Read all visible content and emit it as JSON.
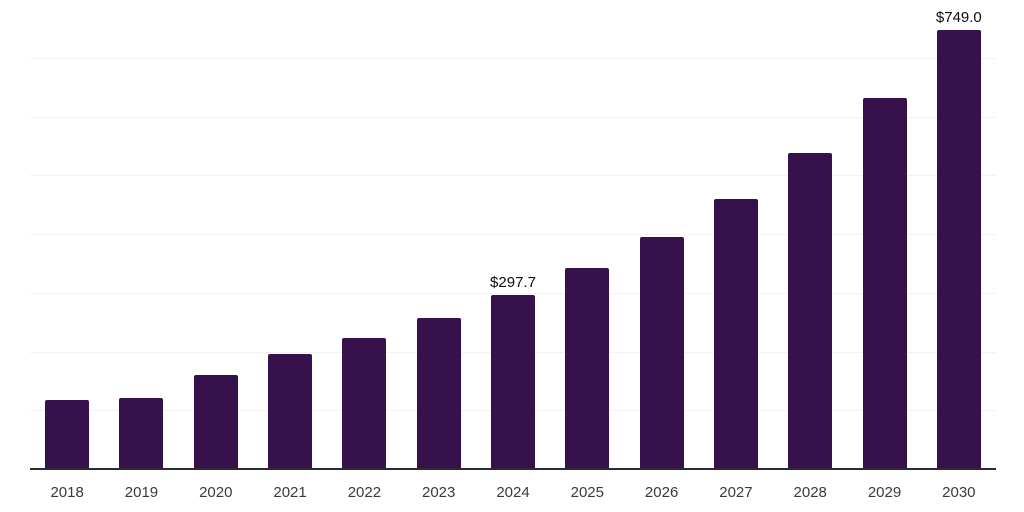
{
  "chart_data": {
    "type": "bar",
    "title": "",
    "xlabel": "",
    "ylabel": "",
    "categories": [
      "2018",
      "2019",
      "2020",
      "2021",
      "2022",
      "2023",
      "2024",
      "2025",
      "2026",
      "2027",
      "2028",
      "2029",
      "2030"
    ],
    "values": [
      119,
      123,
      162,
      197,
      225,
      259,
      297.7,
      344,
      397,
      461,
      540,
      633,
      749
    ],
    "bar_labels": [
      "",
      "",
      "",
      "",
      "",
      "",
      "$297.7",
      "",
      "",
      "",
      "",
      "",
      "$749.0"
    ],
    "ylim": [
      0,
      800
    ],
    "gridline_step": 100,
    "grid": "horizontal-only",
    "y_tick_labels_visible": false,
    "legend": "none",
    "colors": {
      "bar": "#36114C",
      "axis_line": "#2b2b33",
      "gridline": "#f2f2f2",
      "value_label": "#0d0d0d",
      "tick_label": "#3a3a3a",
      "background": "#ffffff"
    }
  }
}
